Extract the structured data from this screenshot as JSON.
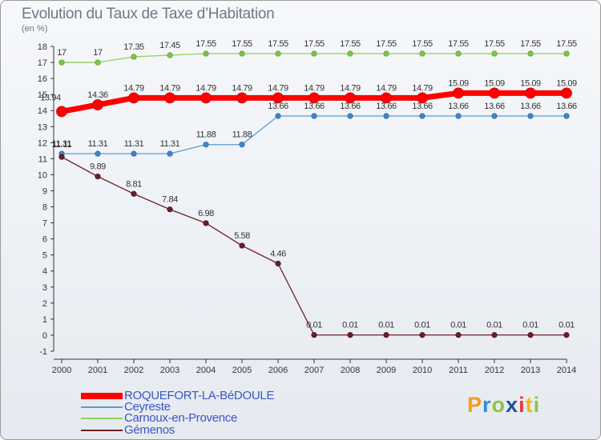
{
  "chart_data": {
    "type": "line",
    "title": "Evolution du Taux de Taxe d’Habitation",
    "subtitle": "(en %)",
    "xlabel": "",
    "ylabel": "",
    "x": [
      "2000",
      "2001",
      "2002",
      "2003",
      "2004",
      "2005",
      "2006",
      "2007",
      "2008",
      "2009",
      "2010",
      "2011",
      "2012",
      "2013",
      "2014"
    ],
    "ylim": [
      -1,
      18
    ],
    "yticks": [
      -1,
      0,
      1,
      2,
      3,
      4,
      5,
      6,
      7,
      8,
      9,
      10,
      11,
      12,
      13,
      14,
      15,
      16,
      17,
      18
    ],
    "grid": false,
    "legend_position": "bottom-left",
    "series": [
      {
        "name": "ROQUEFORT-LA-BéDOULE",
        "color": "#ff0000",
        "values": [
          13.94,
          14.36,
          14.79,
          14.79,
          14.79,
          14.79,
          14.79,
          14.79,
          14.79,
          14.79,
          14.79,
          15.09,
          15.09,
          15.09,
          15.09
        ],
        "labels": [
          "13.94",
          "14.36",
          "14.79",
          "14.79",
          "14.79",
          "14.79",
          "14.79",
          "14.79",
          "14.79",
          "14.79",
          "14.79",
          "15.09",
          "15.09",
          "15.09",
          "15.09"
        ]
      },
      {
        "name": "Ceyreste",
        "color": "#5b9bd5",
        "values": [
          11.31,
          11.31,
          11.31,
          11.31,
          11.88,
          11.88,
          13.66,
          13.66,
          13.66,
          13.66,
          13.66,
          13.66,
          13.66,
          13.66,
          13.66
        ],
        "labels": [
          "11.31",
          "11.31",
          "11.31",
          "11.31",
          "11.88",
          "11.88",
          "13.66",
          "13.66",
          "13.66",
          "13.66",
          "13.66",
          "13.66",
          "13.66",
          "13.66",
          "13.66"
        ]
      },
      {
        "name": "Carnoux-en-Provence",
        "color": "#8fd15a",
        "values": [
          17,
          17,
          17.35,
          17.45,
          17.55,
          17.55,
          17.55,
          17.55,
          17.55,
          17.55,
          17.55,
          17.55,
          17.55,
          17.55,
          17.55
        ],
        "labels": [
          "17",
          "17",
          "17.35",
          "17.45",
          "17.55",
          "17.55",
          "17.55",
          "17.55",
          "17.55",
          "17.55",
          "17.55",
          "17.55",
          "17.55",
          "17.55",
          "17.55"
        ]
      },
      {
        "name": "Gémenos",
        "color": "#6b1f28",
        "values": [
          11.11,
          9.89,
          8.81,
          7.84,
          6.98,
          5.58,
          4.46,
          0.01,
          0.01,
          0.01,
          0.01,
          0.01,
          0.01,
          0.01,
          0.01
        ],
        "labels": [
          "11.11",
          "9.89",
          "8.81",
          "7.84",
          "6.98",
          "5.58",
          "4.46",
          "0.01",
          "0.01",
          "0.01",
          "0.01",
          "0.01",
          "0.01",
          "0.01",
          "0.01"
        ]
      }
    ]
  },
  "brand": {
    "letters": [
      "P",
      "r",
      "o",
      "x",
      "i",
      "t",
      "i"
    ],
    "colors": [
      "#f39c1f",
      "#2a8fd6",
      "#8cc63f",
      "#1f4fa0",
      "#e63a3a",
      "#f3b51f",
      "#8cc63f"
    ]
  }
}
